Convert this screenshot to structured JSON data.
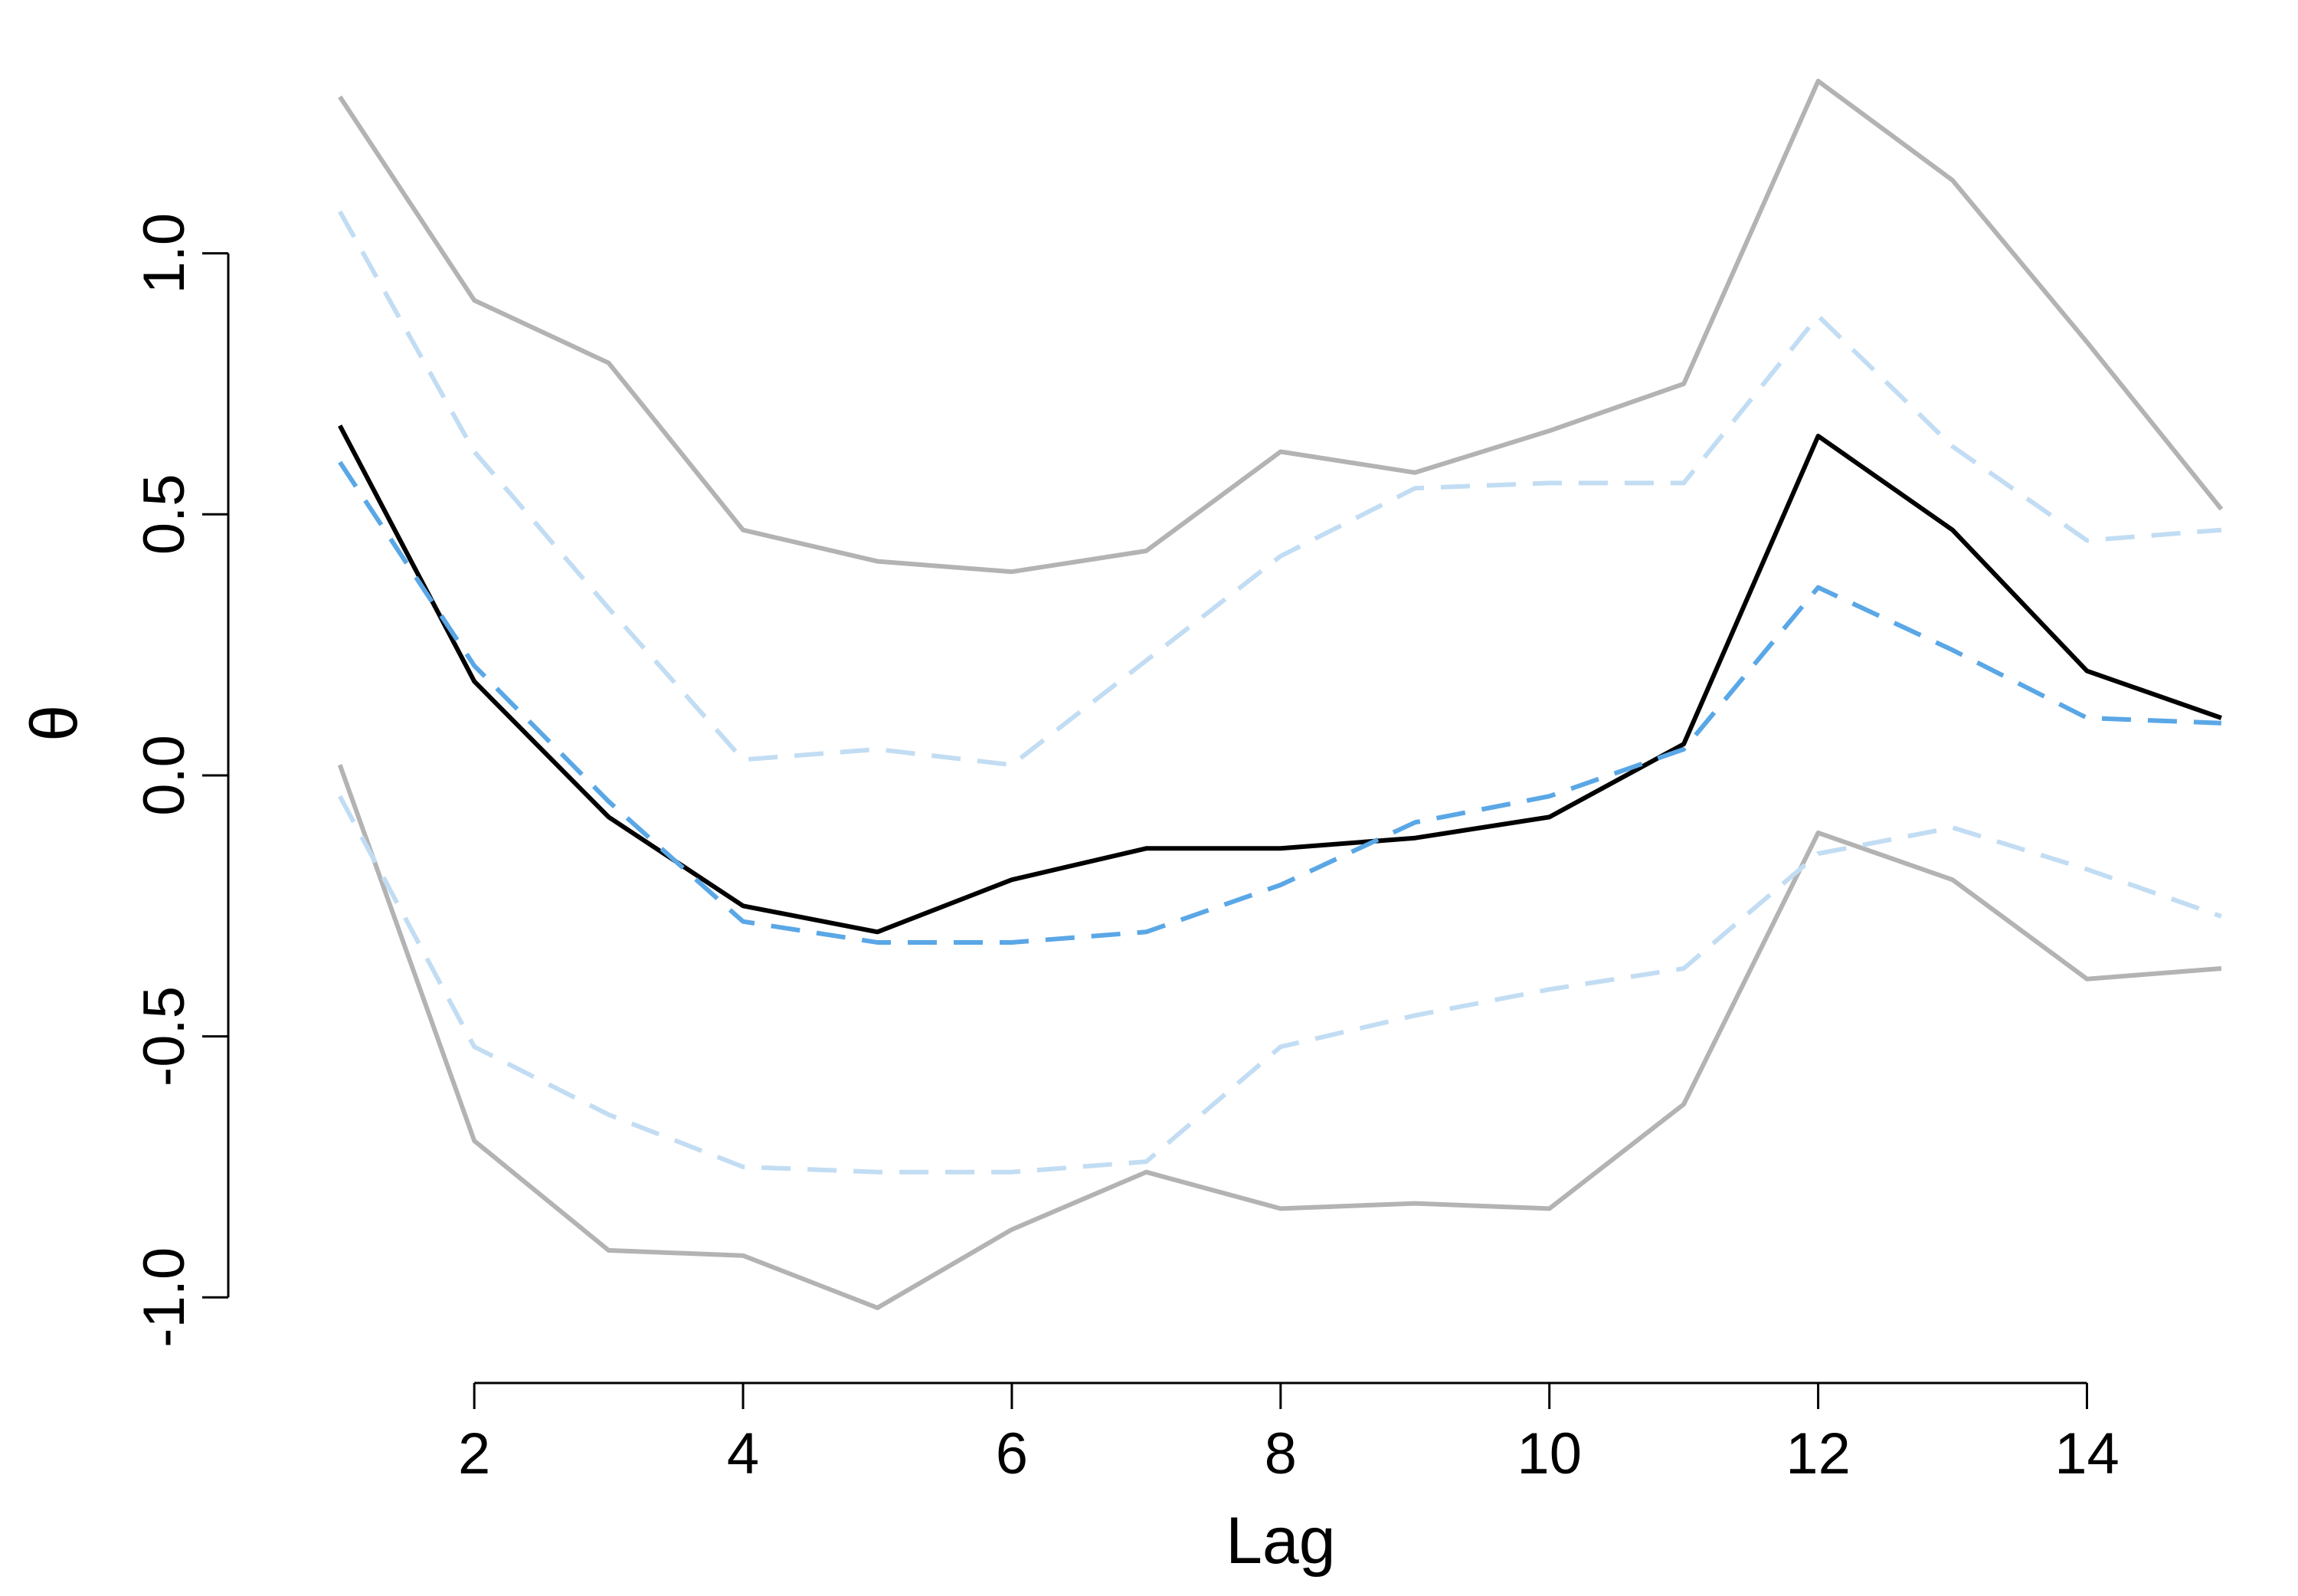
{
  "chart_data": {
    "type": "line",
    "xlabel": "Lag",
    "ylabel": "θ",
    "xlim": [
      0.5,
      15.2
    ],
    "ylim": [
      -1.12,
      1.34
    ],
    "xticks": [
      2,
      4,
      6,
      8,
      10,
      12,
      14
    ],
    "xtick_labels": [
      "2",
      "4",
      "6",
      "8",
      "10",
      "12",
      "14"
    ],
    "yticks": [
      -1.0,
      -0.5,
      0.0,
      0.5,
      1.0
    ],
    "ytick_labels": [
      "-1.0",
      "-0.5",
      "0.0",
      "0.5",
      "1.0"
    ],
    "grid": false,
    "legend": "none",
    "x": [
      1,
      2,
      3,
      4,
      5,
      6,
      7,
      8,
      9,
      10,
      11,
      12,
      13,
      14,
      15
    ],
    "series": [
      {
        "style": "solid",
        "color": "#b3b3b3",
        "x": [
          1,
          2,
          3,
          4,
          5,
          6,
          7,
          8,
          9,
          10,
          11,
          12,
          13,
          14,
          15
        ],
        "values": [
          1.3,
          0.91,
          0.79,
          0.47,
          0.41,
          0.39,
          0.43,
          0.62,
          0.58,
          0.66,
          0.75,
          1.33,
          1.14,
          0.83,
          0.51
        ]
      },
      {
        "style": "solid",
        "color": "#b3b3b3",
        "x": [
          1,
          2,
          3,
          4,
          5,
          6,
          7,
          8,
          9,
          10,
          11,
          12,
          13,
          14,
          15
        ],
        "values": [
          0.02,
          -0.7,
          -0.91,
          -0.92,
          -1.02,
          -0.87,
          -0.76,
          -0.83,
          -0.82,
          -0.83,
          -0.63,
          -0.11,
          -0.2,
          -0.39,
          -0.37
        ]
      },
      {
        "style": "dashed",
        "color": "#c2ddf3",
        "x": [
          1,
          2,
          3,
          4,
          5,
          6,
          7,
          8,
          9,
          10,
          11,
          12,
          13,
          14,
          15
        ],
        "values": [
          1.08,
          0.62,
          0.32,
          0.03,
          0.05,
          0.02,
          0.22,
          0.42,
          0.55,
          0.56,
          0.56,
          0.88,
          0.63,
          0.45,
          0.47
        ]
      },
      {
        "style": "dashed",
        "color": "#c2ddf3",
        "x": [
          1,
          2,
          3,
          4,
          5,
          6,
          7,
          8,
          9,
          10,
          11,
          12,
          13,
          14,
          15
        ],
        "values": [
          -0.04,
          -0.52,
          -0.65,
          -0.75,
          -0.76,
          -0.76,
          -0.74,
          -0.52,
          -0.46,
          -0.41,
          -0.37,
          -0.15,
          -0.1,
          -0.18,
          -0.27
        ]
      },
      {
        "style": "solid",
        "color": "#000000",
        "x": [
          1,
          2,
          3,
          4,
          5,
          6,
          7,
          8,
          9,
          10,
          11,
          12,
          13,
          14,
          15
        ],
        "values": [
          0.67,
          0.18,
          -0.08,
          -0.25,
          -0.3,
          -0.2,
          -0.14,
          -0.14,
          -0.12,
          -0.08,
          0.06,
          0.65,
          0.47,
          0.2,
          0.11
        ]
      },
      {
        "style": "dashed",
        "color": "#5aa7e6",
        "x": [
          1,
          2,
          3,
          4,
          5,
          6,
          7,
          8,
          9,
          10,
          11,
          12,
          13,
          14,
          15
        ],
        "values": [
          0.6,
          0.21,
          -0.05,
          -0.28,
          -0.32,
          -0.32,
          -0.3,
          -0.21,
          -0.09,
          -0.04,
          0.05,
          0.36,
          0.24,
          0.11,
          0.1
        ]
      }
    ]
  }
}
